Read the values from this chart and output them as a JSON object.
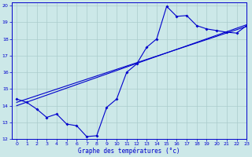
{
  "xlabel": "Graphe des températures (°c)",
  "bg_color": "#cce8e8",
  "grid_color": "#aacccc",
  "line_color": "#0000cc",
  "xlim": [
    -0.5,
    23
  ],
  "ylim": [
    12,
    20.2
  ],
  "yticks": [
    12,
    13,
    14,
    15,
    16,
    17,
    18,
    19,
    20
  ],
  "xticks": [
    0,
    1,
    2,
    3,
    4,
    5,
    6,
    7,
    8,
    9,
    10,
    11,
    12,
    13,
    14,
    15,
    16,
    17,
    18,
    19,
    20,
    21,
    22,
    23
  ],
  "line1_x": [
    0,
    1,
    2,
    3,
    4,
    5,
    6,
    7,
    8,
    9,
    10,
    11,
    12,
    13,
    14,
    15,
    16,
    17,
    18,
    19,
    20,
    21,
    22,
    23
  ],
  "line1_y": [
    14.4,
    14.2,
    13.8,
    13.3,
    13.5,
    12.9,
    12.8,
    12.15,
    12.2,
    13.9,
    14.4,
    16.0,
    16.5,
    17.5,
    18.0,
    19.95,
    19.35,
    19.4,
    18.8,
    18.6,
    18.5,
    18.4,
    18.35,
    18.8
  ],
  "line2_x": [
    0,
    23
  ],
  "line2_y": [
    14.2,
    18.75
  ],
  "line3_x": [
    0,
    23
  ],
  "line3_y": [
    14.0,
    18.85
  ]
}
